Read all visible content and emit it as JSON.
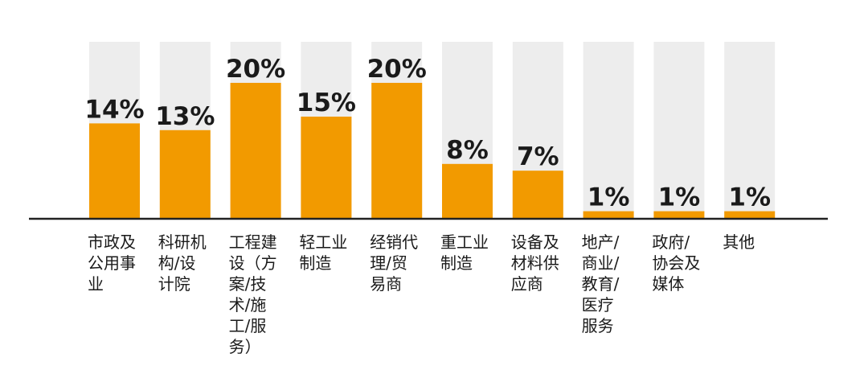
{
  "chart_data": {
    "type": "bar",
    "title": "",
    "xlabel": "",
    "ylabel": "",
    "ylim": [
      0,
      100
    ],
    "value_suffix": "%",
    "categories": [
      "市政及\n公用事\n业",
      "科研机\n构/设\n计院",
      "工程建\n设（方\n案/技\n术/施\n工/服\n务）",
      "轻工业\n制造",
      "经销代\n理/贸\n易商",
      "重工业\n制造",
      "设备及\n材料供\n应商",
      "地产/\n商业/\n教育/\n医疗\n服务",
      "政府/\n协会及\n媒体",
      "其他"
    ],
    "values": [
      14,
      13,
      20,
      15,
      20,
      8,
      7,
      1,
      1,
      1
    ],
    "data_labels": [
      "14%",
      "13%",
      "20%",
      "15%",
      "20%",
      "8%",
      "7%",
      "1%",
      "1%",
      "1%"
    ],
    "grid": false,
    "legend": "none",
    "colors": {
      "bar": "#F29A00",
      "track": "#EDEDED",
      "axis": "#222222",
      "label": "#1a1a1a"
    }
  }
}
